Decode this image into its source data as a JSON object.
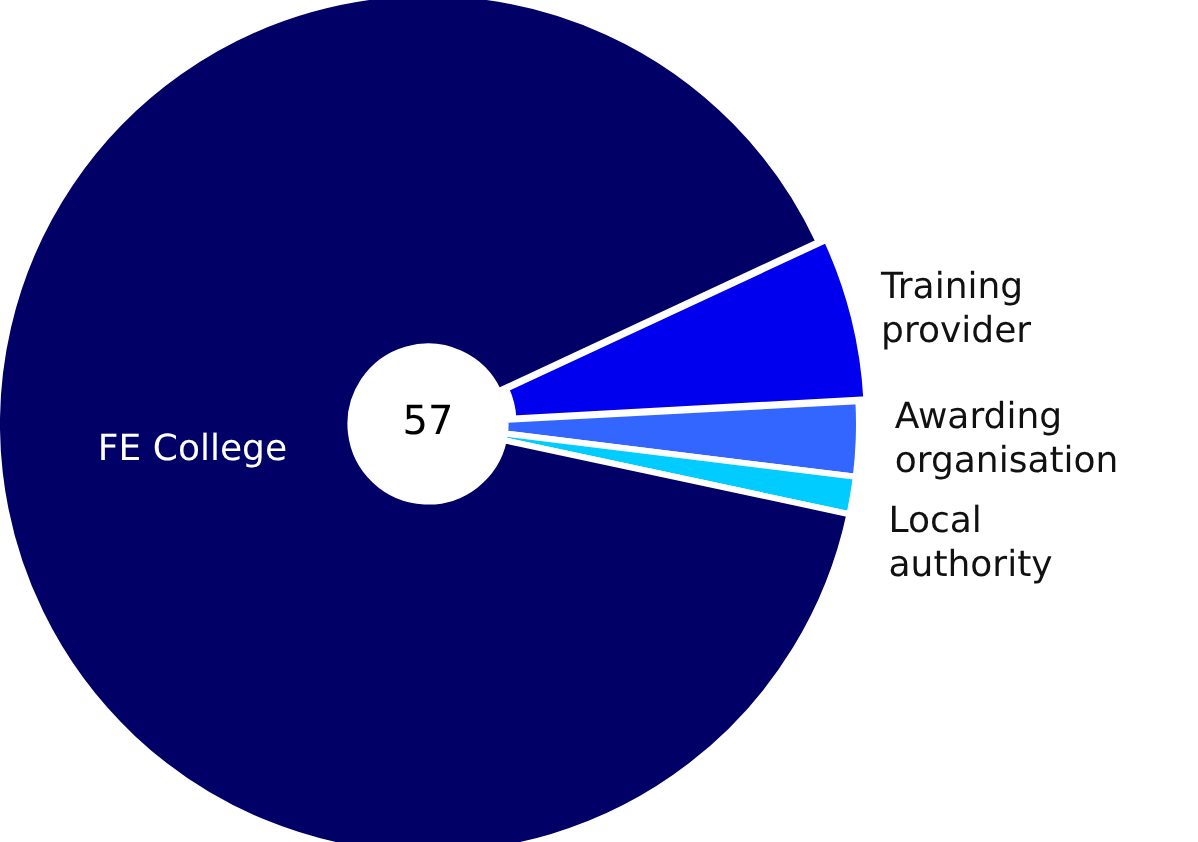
{
  "chart_data": {
    "type": "donut",
    "categories": [
      "Training provider",
      "Awarding organisation",
      "Local authority",
      "FE College"
    ],
    "values": [
      6.1,
      2.8,
      1.4,
      89.7
    ],
    "colors": [
      "#0000ee",
      "#3366ff",
      "#00ccff",
      "#000066"
    ],
    "annotations": [
      "57"
    ],
    "legend": false
  }
}
